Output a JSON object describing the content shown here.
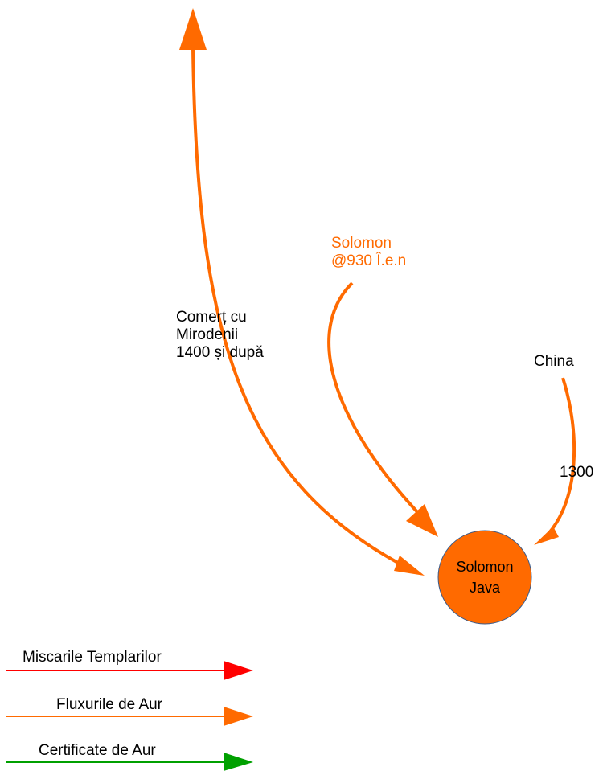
{
  "labels": {
    "spice_trade": [
      "Comerț cu",
      "Mirodenii",
      "1400 și după"
    ],
    "solomon_date": [
      "Solomon",
      "@930 Î.e.n"
    ],
    "china": "China",
    "year_1300": "1300"
  },
  "node": {
    "lines": [
      "Solomon",
      "Java"
    ],
    "fill": "#ff6a00",
    "stroke": "#3b5b8a"
  },
  "legend": [
    {
      "label": "Miscarile Templarilor",
      "color": "#ff0000"
    },
    {
      "label": "Fluxurile de Aur",
      "color": "#ff6a00"
    },
    {
      "label": "Certificate de Aur",
      "color": "#00a000"
    }
  ],
  "colors": {
    "arrow": "#ff6a00"
  }
}
